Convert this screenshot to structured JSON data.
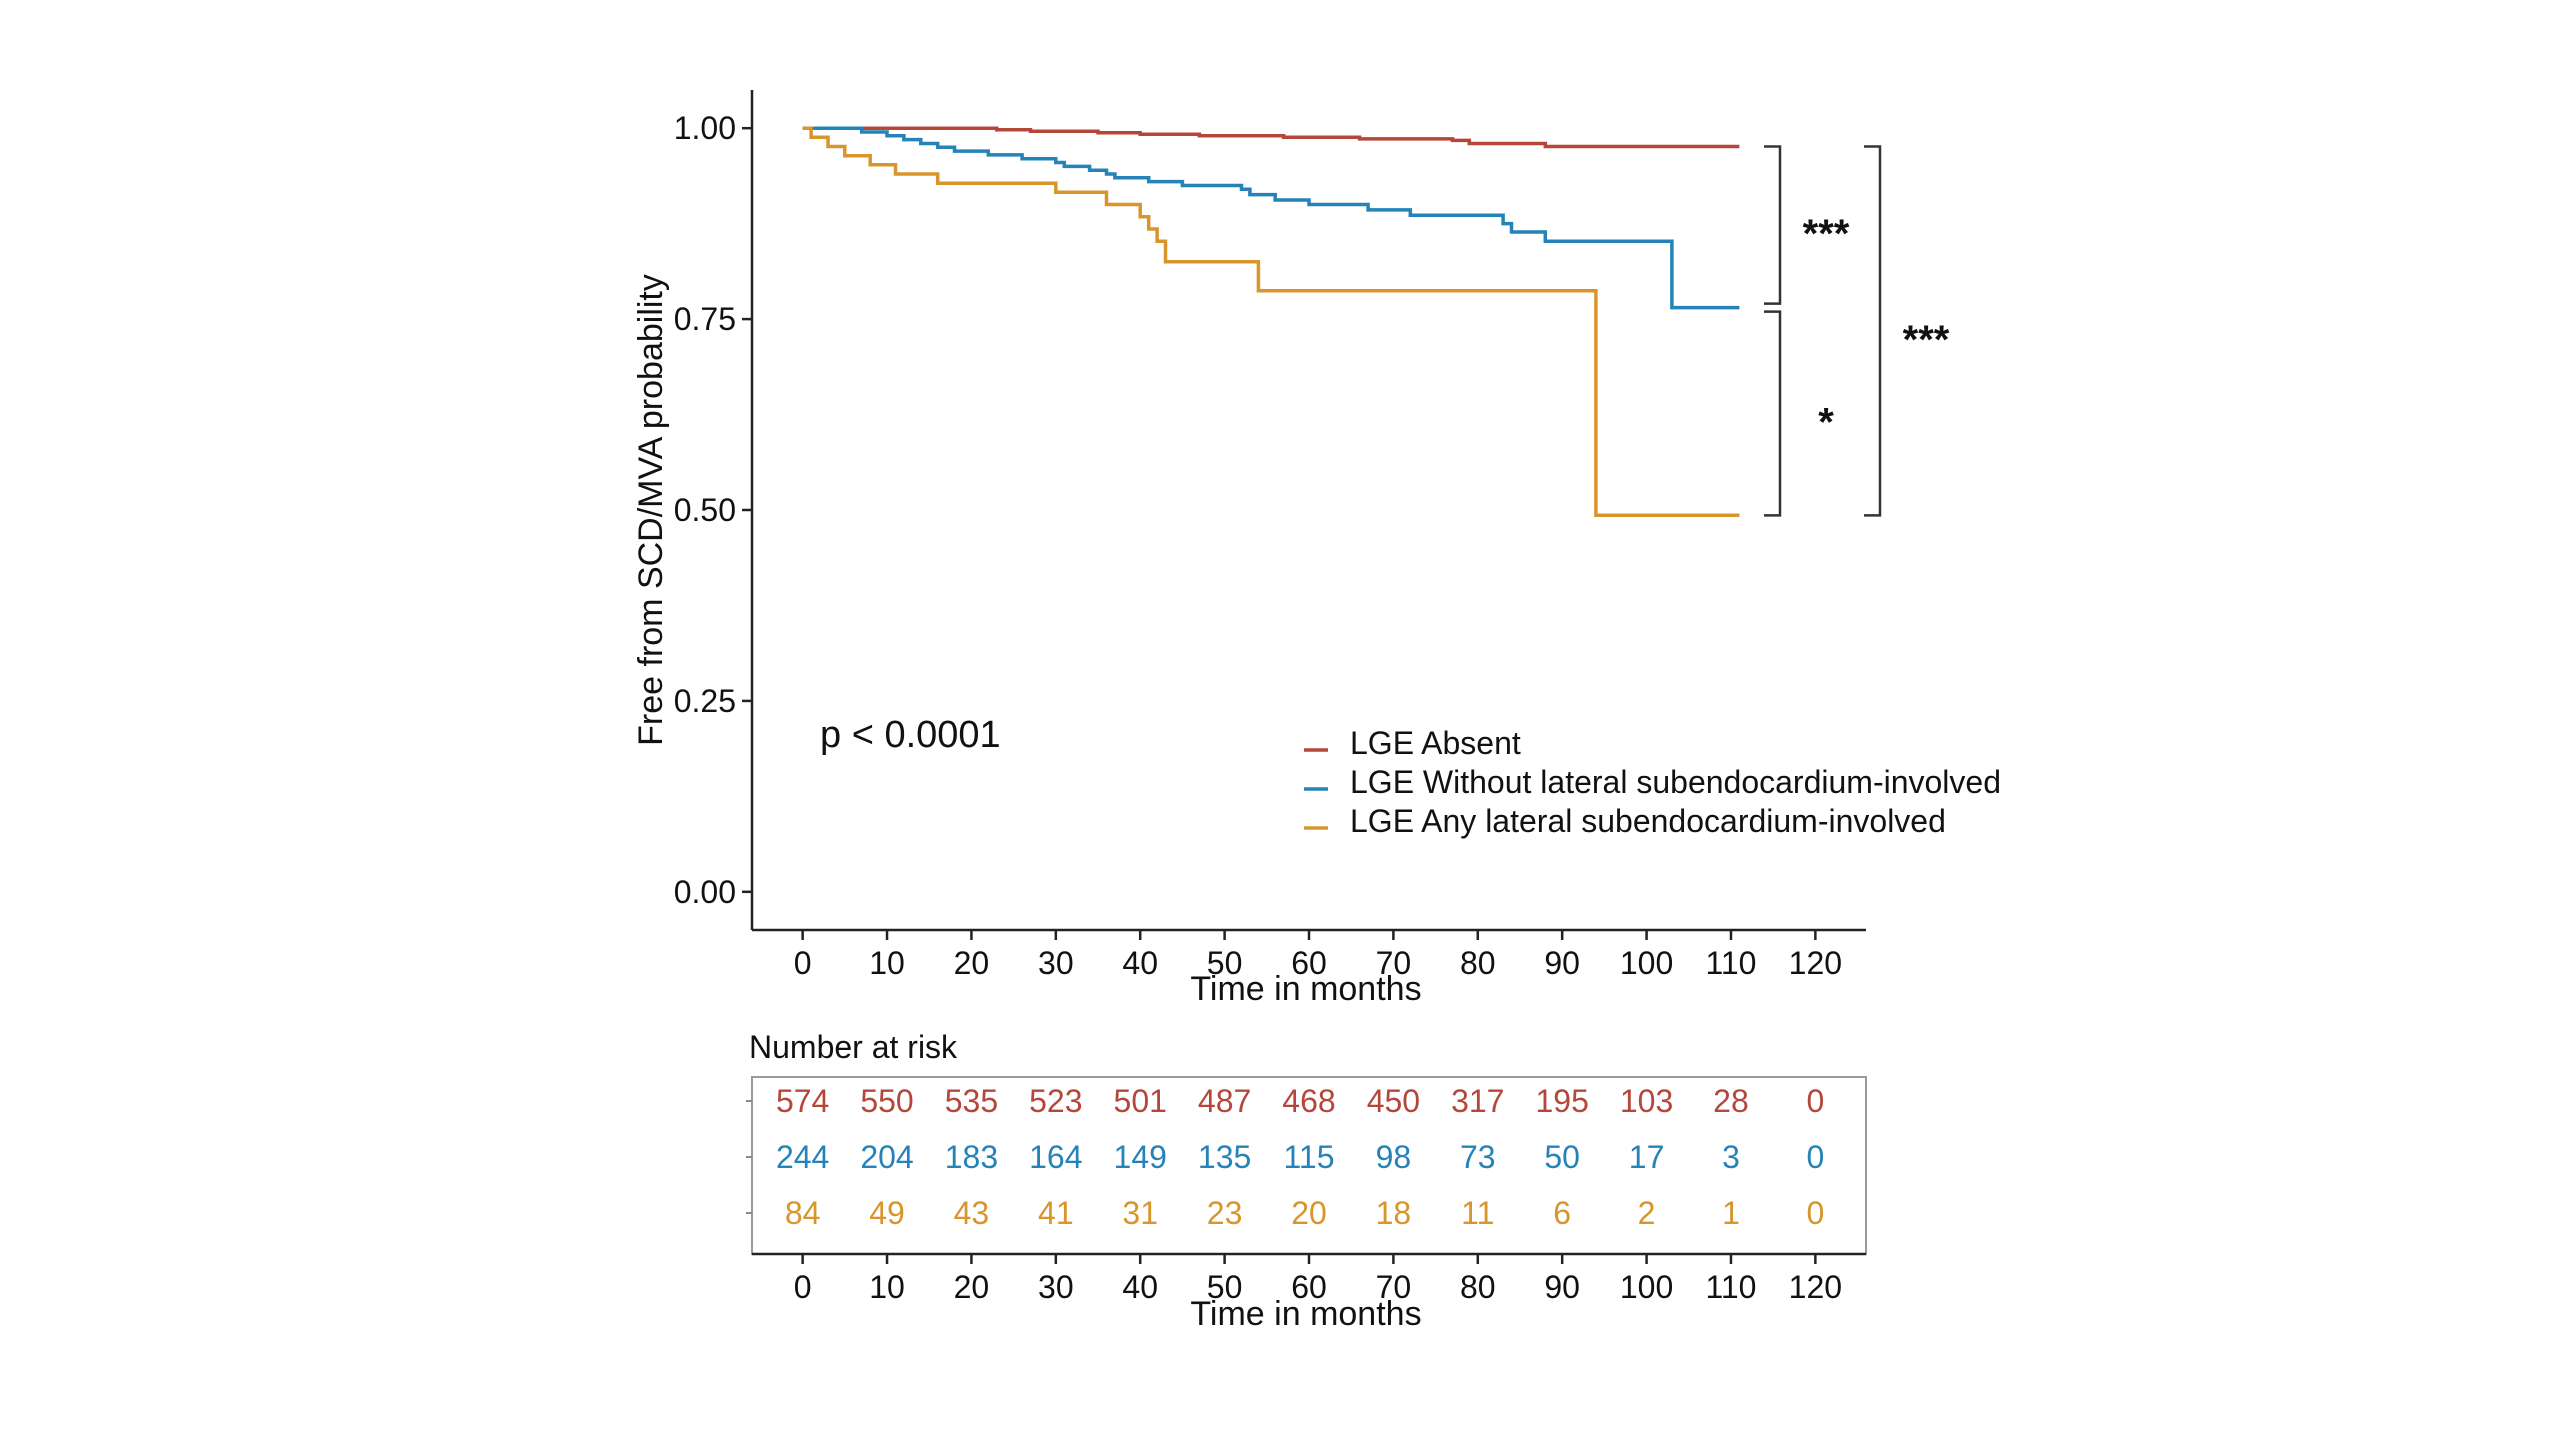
{
  "chart_data": {
    "type": "line",
    "subtype": "kaplan-meier",
    "title": "",
    "xlabel": "Time in months",
    "ylabel": "Free from SCD/MVA probability",
    "xlim": [
      -6,
      126
    ],
    "ylim": [
      -0.05,
      1.05
    ],
    "x_ticks": [
      0,
      10,
      20,
      30,
      40,
      50,
      60,
      70,
      80,
      90,
      100,
      110,
      120
    ],
    "y_ticks": [
      0.0,
      0.25,
      0.5,
      0.75,
      1.0
    ],
    "y_tick_labels": [
      "0.00",
      "0.25",
      "0.50",
      "0.75",
      "1.00"
    ],
    "annotation_p": "p < 0.0001",
    "legend_position": "bottom-right",
    "series": [
      {
        "name": "LGE Absent",
        "color": "#b5473a",
        "points": [
          [
            0,
            1.0
          ],
          [
            23,
            1.0
          ],
          [
            23,
            0.998
          ],
          [
            27,
            0.998
          ],
          [
            27,
            0.996
          ],
          [
            35,
            0.996
          ],
          [
            35,
            0.994
          ],
          [
            40,
            0.994
          ],
          [
            40,
            0.992
          ],
          [
            47,
            0.992
          ],
          [
            47,
            0.99
          ],
          [
            57,
            0.99
          ],
          [
            57,
            0.988
          ],
          [
            66,
            0.988
          ],
          [
            66,
            0.986
          ],
          [
            77,
            0.986
          ],
          [
            77,
            0.984
          ],
          [
            79,
            0.984
          ],
          [
            79,
            0.98
          ],
          [
            88,
            0.98
          ],
          [
            88,
            0.976
          ],
          [
            111,
            0.976
          ]
        ]
      },
      {
        "name": "LGE Without lateral subendocardium-involved",
        "color": "#2583b7",
        "points": [
          [
            0,
            1.0
          ],
          [
            7,
            1.0
          ],
          [
            7,
            0.995
          ],
          [
            10,
            0.995
          ],
          [
            10,
            0.99
          ],
          [
            12,
            0.99
          ],
          [
            12,
            0.985
          ],
          [
            14,
            0.985
          ],
          [
            14,
            0.98
          ],
          [
            16,
            0.98
          ],
          [
            16,
            0.975
          ],
          [
            18,
            0.975
          ],
          [
            18,
            0.97
          ],
          [
            22,
            0.97
          ],
          [
            22,
            0.965
          ],
          [
            26,
            0.965
          ],
          [
            26,
            0.96
          ],
          [
            30,
            0.96
          ],
          [
            30,
            0.955
          ],
          [
            31,
            0.955
          ],
          [
            31,
            0.95
          ],
          [
            34,
            0.95
          ],
          [
            34,
            0.945
          ],
          [
            36,
            0.945
          ],
          [
            36,
            0.94
          ],
          [
            37,
            0.94
          ],
          [
            37,
            0.935
          ],
          [
            41,
            0.935
          ],
          [
            41,
            0.93
          ],
          [
            45,
            0.93
          ],
          [
            45,
            0.925
          ],
          [
            52,
            0.925
          ],
          [
            52,
            0.92
          ],
          [
            53,
            0.92
          ],
          [
            53,
            0.913
          ],
          [
            56,
            0.913
          ],
          [
            56,
            0.906
          ],
          [
            60,
            0.906
          ],
          [
            60,
            0.9
          ],
          [
            67,
            0.9
          ],
          [
            67,
            0.893
          ],
          [
            72,
            0.893
          ],
          [
            72,
            0.886
          ],
          [
            83,
            0.886
          ],
          [
            83,
            0.875
          ],
          [
            84,
            0.875
          ],
          [
            84,
            0.864
          ],
          [
            88,
            0.864
          ],
          [
            88,
            0.852
          ],
          [
            103,
            0.852
          ],
          [
            103,
            0.765
          ],
          [
            111,
            0.765
          ]
        ]
      },
      {
        "name": "LGE Any lateral subendocardium-involved",
        "color": "#d8952b",
        "points": [
          [
            0,
            1.0
          ],
          [
            1,
            1.0
          ],
          [
            1,
            0.988
          ],
          [
            3,
            0.988
          ],
          [
            3,
            0.976
          ],
          [
            5,
            0.976
          ],
          [
            5,
            0.964
          ],
          [
            8,
            0.964
          ],
          [
            8,
            0.952
          ],
          [
            11,
            0.952
          ],
          [
            11,
            0.94
          ],
          [
            16,
            0.94
          ],
          [
            16,
            0.928
          ],
          [
            30,
            0.928
          ],
          [
            30,
            0.916
          ],
          [
            36,
            0.916
          ],
          [
            36,
            0.9
          ],
          [
            40,
            0.9
          ],
          [
            40,
            0.884
          ],
          [
            41,
            0.884
          ],
          [
            41,
            0.868
          ],
          [
            42,
            0.868
          ],
          [
            42,
            0.852
          ],
          [
            43,
            0.852
          ],
          [
            43,
            0.825
          ],
          [
            54,
            0.825
          ],
          [
            54,
            0.787
          ],
          [
            94,
            0.787
          ],
          [
            94,
            0.493
          ],
          [
            111,
            0.493
          ]
        ]
      }
    ],
    "significance": [
      {
        "label": "***",
        "pair": [
          "LGE Absent",
          "LGE Without lateral subendocardium-involved"
        ],
        "from": 0.976,
        "to": 0.765
      },
      {
        "label": "*",
        "pair": [
          "LGE Without lateral subendocardium-involved",
          "LGE Any lateral subendocardium-involved"
        ],
        "from": 0.765,
        "to": 0.493
      },
      {
        "label": "***",
        "pair": [
          "LGE Absent",
          "LGE Any lateral subendocardium-involved"
        ],
        "from": 0.976,
        "to": 0.493
      }
    ],
    "risk_table": {
      "title": "Number at risk",
      "xlabel": "Time in months",
      "times": [
        0,
        10,
        20,
        30,
        40,
        50,
        60,
        70,
        80,
        90,
        100,
        110,
        120
      ],
      "rows": [
        {
          "name": "LGE Absent",
          "color": "#b5473a",
          "values": [
            574,
            550,
            535,
            523,
            501,
            487,
            468,
            450,
            317,
            195,
            103,
            28,
            0
          ]
        },
        {
          "name": "LGE Without lateral subendocardium-involved",
          "color": "#2583b7",
          "values": [
            244,
            204,
            183,
            164,
            149,
            135,
            115,
            98,
            73,
            50,
            17,
            3,
            0
          ]
        },
        {
          "name": "LGE Any lateral subendocardium-involved",
          "color": "#d8952b",
          "values": [
            84,
            49,
            43,
            41,
            31,
            23,
            20,
            18,
            11,
            6,
            2,
            1,
            0
          ]
        }
      ]
    }
  }
}
